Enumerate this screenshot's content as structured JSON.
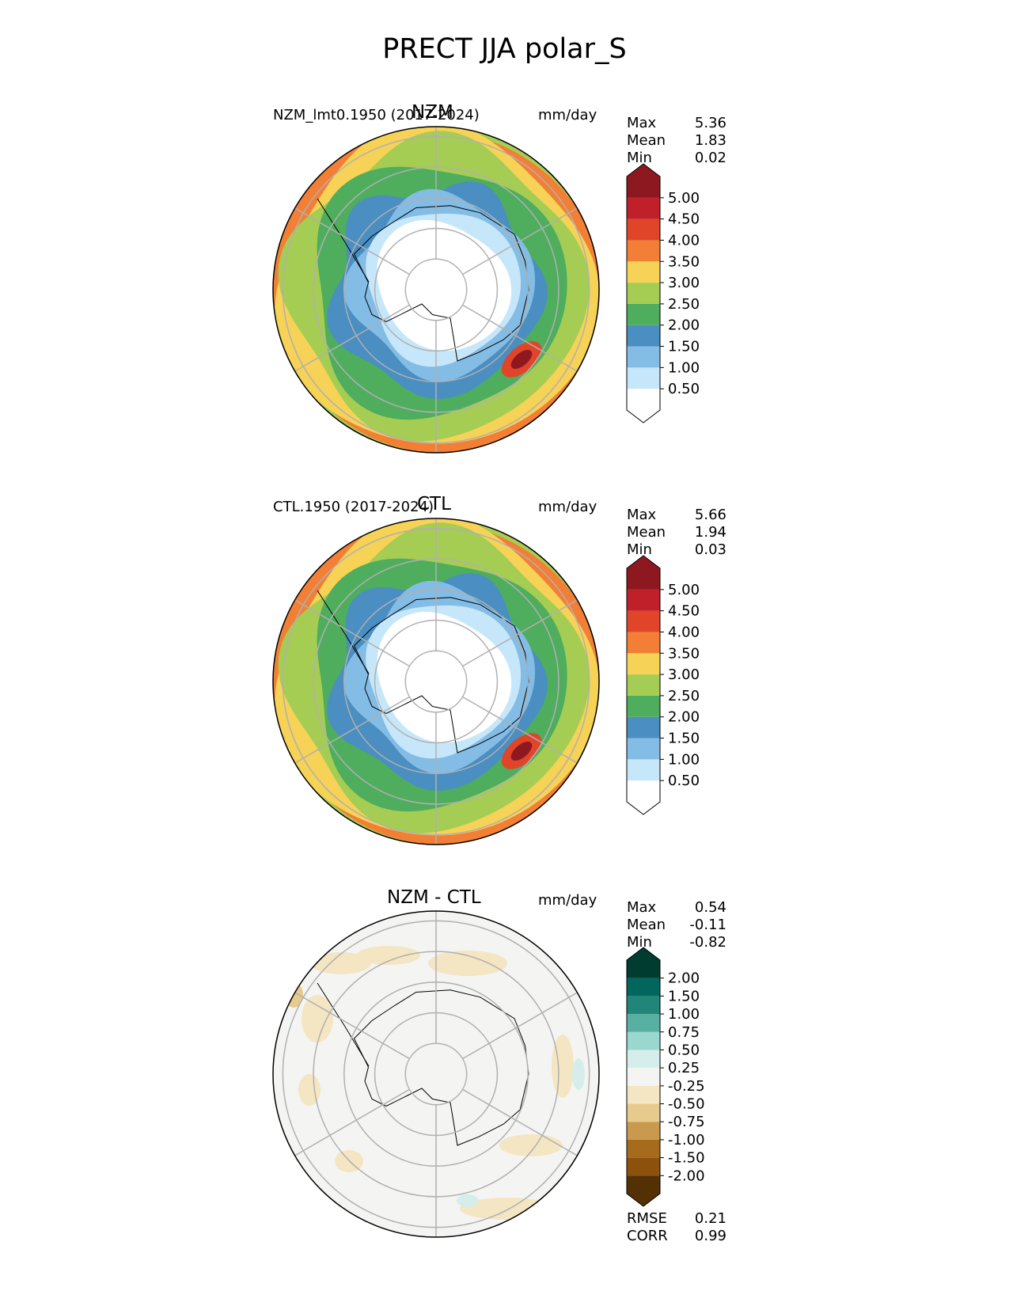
{
  "figure": {
    "title": "PRECT JJA polar_S"
  },
  "chart_data": [
    {
      "type": "heatmap",
      "projection": "south-polar-stereographic",
      "title_center": "NZM",
      "title_left": "NZM_lmt0.1950 (2017-2024)",
      "units": "mm/day",
      "stats": {
        "max_label": "Max",
        "max": "5.36",
        "mean_label": "Mean",
        "mean": "1.83",
        "min_label": "Min",
        "min": "0.02"
      },
      "colorbar": {
        "ticks": [
          "0.50",
          "1.00",
          "1.50",
          "2.00",
          "2.50",
          "3.00",
          "3.50",
          "4.00",
          "4.50",
          "5.00"
        ],
        "colors": [
          "#ffffff",
          "#c6e7fa",
          "#83bce5",
          "#4a8ec2",
          "#4fad5e",
          "#a5cd53",
          "#f6d257",
          "#f27f35",
          "#e0452a",
          "#c0202a",
          "#8d1820"
        ]
      },
      "rings_lat": [
        -80,
        -70,
        -60,
        -50,
        -40
      ],
      "meridians_deg": [
        0,
        60,
        120,
        180,
        240,
        300
      ],
      "field_bands": [
        {
          "ring": 4,
          "level": 7
        },
        {
          "ring": 3.5,
          "level": 5
        },
        {
          "ring": 3,
          "level": 4
        },
        {
          "ring": 2.5,
          "level": 3
        },
        {
          "ring": 2,
          "level": 2
        },
        {
          "ring": 1.5,
          "level": 0
        }
      ]
    },
    {
      "type": "heatmap",
      "projection": "south-polar-stereographic",
      "title_center": "CTL",
      "title_left": "CTL.1950 (2017-2024)",
      "units": "mm/day",
      "stats": {
        "max_label": "Max",
        "max": "5.66",
        "mean_label": "Mean",
        "mean": "1.94",
        "min_label": "Min",
        "min": "0.03"
      },
      "colorbar": {
        "ticks": [
          "0.50",
          "1.00",
          "1.50",
          "2.00",
          "2.50",
          "3.00",
          "3.50",
          "4.00",
          "4.50",
          "5.00"
        ],
        "colors": [
          "#ffffff",
          "#c6e7fa",
          "#83bce5",
          "#4a8ec2",
          "#4fad5e",
          "#a5cd53",
          "#f6d257",
          "#f27f35",
          "#e0452a",
          "#c0202a",
          "#8d1820"
        ]
      },
      "rings_lat": [
        -80,
        -70,
        -60,
        -50,
        -40
      ],
      "meridians_deg": [
        0,
        60,
        120,
        180,
        240,
        300
      ],
      "field_bands": [
        {
          "ring": 4,
          "level": 7
        },
        {
          "ring": 3.5,
          "level": 5
        },
        {
          "ring": 3,
          "level": 4
        },
        {
          "ring": 2.5,
          "level": 3
        },
        {
          "ring": 2,
          "level": 2
        },
        {
          "ring": 1.5,
          "level": 0
        }
      ]
    },
    {
      "type": "heatmap",
      "projection": "south-polar-stereographic",
      "title_center": "NZM - CTL",
      "title_left": "",
      "units": "mm/day",
      "stats": {
        "max_label": "Max",
        "max": "0.54",
        "mean_label": "Mean",
        "mean": "-0.11",
        "min_label": "Min",
        "min": "-0.82"
      },
      "colorbar": {
        "ticks": [
          "-2.00",
          "-1.50",
          "-1.00",
          "-0.75",
          "-0.50",
          "-0.25",
          "0.25",
          "0.50",
          "0.75",
          "1.00",
          "1.50",
          "2.00"
        ],
        "colors": [
          "#543005",
          "#8c510a",
          "#a66b1c",
          "#c99a4d",
          "#e6cb8c",
          "#f4e5c3",
          "#f4f4f2",
          "#d5eeeb",
          "#9ad8cf",
          "#58b0a3",
          "#218579",
          "#01665e",
          "#003c30"
        ]
      },
      "rings_lat": [
        -80,
        -70,
        -60,
        -50,
        -40
      ],
      "meridians_deg": [
        0,
        60,
        120,
        180,
        240,
        300
      ],
      "field_bands": [
        {
          "ring": 4,
          "level": 6
        }
      ],
      "footer": {
        "rmse_label": "RMSE",
        "rmse": "0.21",
        "corr_label": "CORR",
        "corr": "0.99"
      }
    }
  ]
}
